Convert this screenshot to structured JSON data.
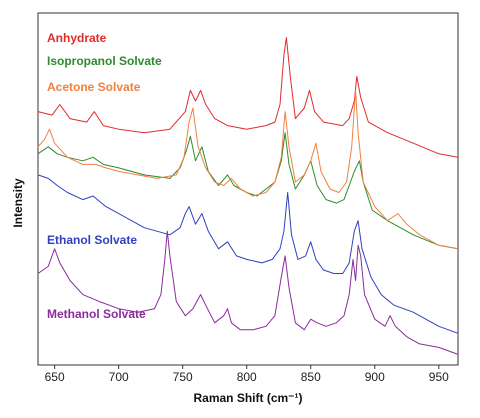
{
  "chart_data": {
    "type": "line",
    "xlabel": "Raman Shift (cm⁻¹)",
    "ylabel": "Intensity",
    "xlim": [
      637,
      965
    ],
    "ylim": [
      0,
      100
    ],
    "x_ticks": [
      650,
      700,
      750,
      800,
      850,
      900,
      950
    ],
    "y_ticks_shown": false,
    "grid": false,
    "legend": "inline labels",
    "series": [
      {
        "name": "Anhydrate",
        "color": "#e02b2b",
        "points": [
          [
            637,
            72
          ],
          [
            648,
            71
          ],
          [
            654,
            74
          ],
          [
            662,
            70
          ],
          [
            675,
            69
          ],
          [
            681,
            72
          ],
          [
            688,
            68
          ],
          [
            700,
            67
          ],
          [
            720,
            66
          ],
          [
            740,
            67
          ],
          [
            752,
            72
          ],
          [
            756,
            78
          ],
          [
            760,
            75
          ],
          [
            764,
            78
          ],
          [
            768,
            74
          ],
          [
            775,
            70
          ],
          [
            785,
            68
          ],
          [
            800,
            67
          ],
          [
            815,
            68
          ],
          [
            822,
            69
          ],
          [
            826,
            74
          ],
          [
            829,
            88
          ],
          [
            831,
            93
          ],
          [
            834,
            82
          ],
          [
            838,
            70
          ],
          [
            845,
            73
          ],
          [
            849,
            78
          ],
          [
            853,
            72
          ],
          [
            860,
            69
          ],
          [
            875,
            68
          ],
          [
            880,
            70
          ],
          [
            884,
            75
          ],
          [
            886,
            82
          ],
          [
            889,
            76
          ],
          [
            895,
            69
          ],
          [
            910,
            66
          ],
          [
            930,
            63
          ],
          [
            950,
            60
          ],
          [
            965,
            59
          ]
        ]
      },
      {
        "name": "Isopropanol Solvate",
        "color": "#2e8b2e",
        "points": [
          [
            637,
            60
          ],
          [
            645,
            62
          ],
          [
            652,
            60
          ],
          [
            660,
            59
          ],
          [
            672,
            58
          ],
          [
            680,
            59
          ],
          [
            688,
            57
          ],
          [
            700,
            56
          ],
          [
            720,
            54
          ],
          [
            740,
            53
          ],
          [
            748,
            56
          ],
          [
            753,
            61
          ],
          [
            756,
            65
          ],
          [
            760,
            58
          ],
          [
            765,
            62
          ],
          [
            770,
            55
          ],
          [
            778,
            51
          ],
          [
            785,
            54
          ],
          [
            790,
            51
          ],
          [
            800,
            49
          ],
          [
            808,
            48
          ],
          [
            815,
            50
          ],
          [
            822,
            52
          ],
          [
            827,
            58
          ],
          [
            830,
            66
          ],
          [
            833,
            57
          ],
          [
            838,
            50
          ],
          [
            845,
            54
          ],
          [
            850,
            58
          ],
          [
            855,
            51
          ],
          [
            862,
            47
          ],
          [
            870,
            46
          ],
          [
            876,
            47
          ],
          [
            880,
            51
          ],
          [
            884,
            55
          ],
          [
            888,
            58
          ],
          [
            891,
            52
          ],
          [
            898,
            44
          ],
          [
            910,
            41
          ],
          [
            930,
            37
          ],
          [
            950,
            34
          ],
          [
            965,
            33
          ]
        ]
      },
      {
        "name": "Acetone Solvate",
        "color": "#f08040",
        "points": [
          [
            637,
            62
          ],
          [
            642,
            64
          ],
          [
            646,
            67
          ],
          [
            650,
            63
          ],
          [
            660,
            59
          ],
          [
            672,
            57
          ],
          [
            682,
            57
          ],
          [
            690,
            56
          ],
          [
            700,
            55
          ],
          [
            715,
            54
          ],
          [
            730,
            53
          ],
          [
            745,
            54
          ],
          [
            751,
            59
          ],
          [
            755,
            69
          ],
          [
            758,
            73
          ],
          [
            762,
            62
          ],
          [
            768,
            56
          ],
          [
            775,
            52
          ],
          [
            782,
            51
          ],
          [
            788,
            53
          ],
          [
            795,
            50
          ],
          [
            805,
            48
          ],
          [
            815,
            49
          ],
          [
            822,
            52
          ],
          [
            827,
            59
          ],
          [
            830,
            72
          ],
          [
            833,
            62
          ],
          [
            838,
            52
          ],
          [
            845,
            54
          ],
          [
            850,
            58
          ],
          [
            854,
            63
          ],
          [
            858,
            55
          ],
          [
            865,
            50
          ],
          [
            872,
            49
          ],
          [
            878,
            52
          ],
          [
            882,
            62
          ],
          [
            885,
            78
          ],
          [
            887,
            66
          ],
          [
            891,
            52
          ],
          [
            900,
            45
          ],
          [
            910,
            41
          ],
          [
            918,
            43
          ],
          [
            925,
            40
          ],
          [
            935,
            37
          ],
          [
            950,
            34
          ],
          [
            965,
            33
          ]
        ]
      },
      {
        "name": "Ethanol Solvate",
        "color": "#3040c0",
        "points": [
          [
            637,
            54
          ],
          [
            645,
            53
          ],
          [
            652,
            51
          ],
          [
            660,
            49
          ],
          [
            672,
            47
          ],
          [
            680,
            48
          ],
          [
            690,
            45
          ],
          [
            700,
            43
          ],
          [
            720,
            39
          ],
          [
            740,
            37
          ],
          [
            748,
            39
          ],
          [
            752,
            43
          ],
          [
            755,
            45
          ],
          [
            760,
            40
          ],
          [
            765,
            43
          ],
          [
            770,
            38
          ],
          [
            778,
            33
          ],
          [
            785,
            35
          ],
          [
            792,
            31
          ],
          [
            800,
            30
          ],
          [
            812,
            29
          ],
          [
            820,
            30
          ],
          [
            826,
            33
          ],
          [
            829,
            38
          ],
          [
            832,
            49
          ],
          [
            835,
            37
          ],
          [
            840,
            30
          ],
          [
            846,
            31
          ],
          [
            850,
            35
          ],
          [
            854,
            30
          ],
          [
            860,
            27
          ],
          [
            868,
            26
          ],
          [
            875,
            26
          ],
          [
            880,
            29
          ],
          [
            884,
            38
          ],
          [
            887,
            41
          ],
          [
            890,
            33
          ],
          [
            897,
            25
          ],
          [
            905,
            20
          ],
          [
            915,
            17
          ],
          [
            930,
            15
          ],
          [
            950,
            11
          ],
          [
            965,
            9
          ]
        ]
      },
      {
        "name": "Methanol Solvate",
        "color": "#8a2b9c",
        "points": [
          [
            637,
            26
          ],
          [
            645,
            28
          ],
          [
            650,
            33
          ],
          [
            654,
            29
          ],
          [
            662,
            24
          ],
          [
            672,
            20
          ],
          [
            685,
            18
          ],
          [
            700,
            16
          ],
          [
            715,
            15
          ],
          [
            728,
            16
          ],
          [
            733,
            20
          ],
          [
            736,
            30
          ],
          [
            738,
            38
          ],
          [
            740,
            31
          ],
          [
            745,
            18
          ],
          [
            752,
            14
          ],
          [
            758,
            16
          ],
          [
            764,
            20
          ],
          [
            768,
            17
          ],
          [
            775,
            12
          ],
          [
            782,
            14
          ],
          [
            785,
            16
          ],
          [
            788,
            12
          ],
          [
            795,
            10
          ],
          [
            805,
            10
          ],
          [
            815,
            11
          ],
          [
            822,
            14
          ],
          [
            827,
            25
          ],
          [
            830,
            31
          ],
          [
            833,
            22
          ],
          [
            838,
            12
          ],
          [
            845,
            10
          ],
          [
            850,
            13
          ],
          [
            855,
            12
          ],
          [
            862,
            11
          ],
          [
            870,
            12
          ],
          [
            876,
            14
          ],
          [
            880,
            20
          ],
          [
            883,
            30
          ],
          [
            885,
            24
          ],
          [
            887,
            34
          ],
          [
            889,
            31
          ],
          [
            892,
            20
          ],
          [
            900,
            13
          ],
          [
            908,
            11
          ],
          [
            912,
            14
          ],
          [
            916,
            11
          ],
          [
            925,
            8
          ],
          [
            935,
            6
          ],
          [
            950,
            5
          ],
          [
            965,
            3
          ]
        ]
      }
    ]
  }
}
